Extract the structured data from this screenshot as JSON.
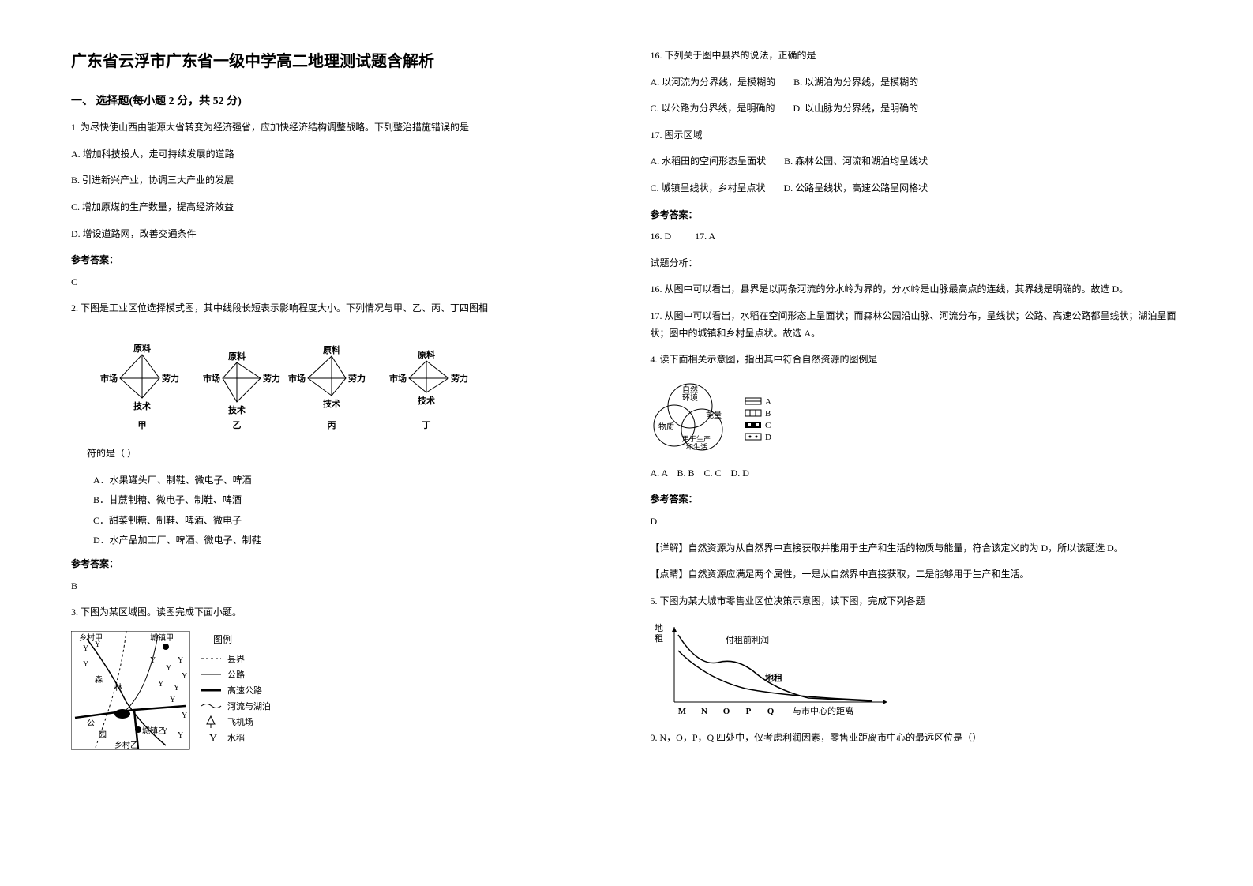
{
  "title": "广东省云浮市广东省一级中学高二地理测试题含解析",
  "section1_heading": "一、 选择题(每小题 2 分，共 52 分)",
  "q1": {
    "stem": "1. 为尽快使山西由能源大省转变为经济强省，应加快经济结构调整战略。下列整治措施错误的是",
    "optA": "A. 增加科技投人，走可持续发展的道路",
    "optB": "B. 引进新兴产业，协调三大产业的发展",
    "optC": "C. 增加原煤的生产数量，提高经济效益",
    "optD": "D. 增设道路网，改善交通条件",
    "answer_label": "参考答案：",
    "answer": "C"
  },
  "q2": {
    "stem": "2. 下图是工业区位选择模式图，其中线段长短表示影响程度大小。下列情况与甲、乙、丙、丁四图相",
    "fig": {
      "labels": {
        "top": "原料",
        "left": "市场",
        "right": "劳力",
        "bottom": "技术"
      },
      "diamonds": [
        "甲",
        "乙",
        "丙",
        "丁"
      ],
      "stroke": "#000000",
      "text_color": "#000000"
    },
    "tail": "符的是（    ）",
    "optA": "A．水果罐头厂、制鞋、微电子、啤酒",
    "optB": "B．甘蔗制糖、微电子、制鞋、啤酒",
    "optC": "C．甜菜制糖、制鞋、啤酒、微电子",
    "optD": "D．水产品加工厂、啤酒、微电子、制鞋",
    "answer_label": "参考答案：",
    "answer": "B"
  },
  "q3": {
    "stem": "3. 下图为某区域图。读图完成下面小题。",
    "legend_title": "图例",
    "legend": {
      "county": "县界",
      "road": "公路",
      "highway": "高速公路",
      "river": "河流与湖泊",
      "airport": "飞机场",
      "rice": "水稻"
    },
    "map_labels": {
      "villageA": "乡村甲",
      "townA": "城镇甲",
      "forest": "森",
      "forest2": "林",
      "park": "公",
      "park2": "园",
      "townB": "城镇乙",
      "villageB": "乡村乙"
    },
    "colors": {
      "stroke": "#000000",
      "bg": "#ffffff"
    }
  },
  "q16": {
    "stem": "16.  下列关于图中县界的说法，正确的是",
    "optA": "A.  以河流为分界线，是模糊的",
    "optB": "B.  以湖泊为分界线，是模糊的",
    "optC": "C.  以公路为分界线，是明确的",
    "optD": "D.  以山脉为分界线，是明确的"
  },
  "q17": {
    "stem": "17.  图示区域",
    "optA": "A.  水稻田的空间形态呈面状",
    "optB": "B.  森林公园、河流和湖泊均呈线状",
    "optC": "C.  城镇呈线状，乡村呈点状",
    "optD": "D.  公路呈线状，高速公路呈网格状"
  },
  "ans_1617": {
    "label": "参考答案：",
    "line": "16. D          17. A",
    "sub": "试题分析：",
    "exp16": "16.  从图中可以看出，县界是以两条河流的分水岭为界的，分水岭是山脉最高点的连线，其界线是明确的。故选 D。",
    "exp17": "17.  从图中可以看出，水稻在空间形态上呈面状；而森林公园沿山脉、河流分布，呈线状；公路、高速公路都呈线状；湖泊呈面状；图中的城镇和乡村呈点状。故选 A。"
  },
  "q4": {
    "stem": "4. 读下面相关示意图，指出其中符合自然资源的图例是",
    "fig": {
      "circle1": "自然",
      "circle1b": "环境",
      "circle2": "物质",
      "mid": "能量",
      "bottom": "用于生产",
      "bottom2": "和生活",
      "legend": {
        "A": "A",
        "B": "B",
        "C": "C",
        "D": "D"
      },
      "colors": {
        "stroke": "#000000"
      }
    },
    "opts": "A. A    B. B    C. C    D. D",
    "answer_label": "参考答案：",
    "answer": "D",
    "detail": "【详解】自然资源为从自然界中直接获取并能用于生产和生活的物质与能量，符合该定义的为 D，所以该题选 D。",
    "tip": "【点睛】自然资源应满足两个属性，一是从自然界中直接获取，二是能够用于生产和生活。"
  },
  "q5": {
    "stem": "5. 下图为某大城市零售业区位决策示意图，读下图，完成下列各题",
    "fig": {
      "ylabel": "地租",
      "ylabel2": "",
      "curve1": "付租前利润",
      "curve2": "地租",
      "xticks": [
        "M",
        "N",
        "O",
        "P",
        "Q"
      ],
      "xlabel": "与市中心的距离",
      "colors": {
        "stroke": "#000000",
        "bg": "#ffffff"
      }
    },
    "q9": "9.  N，O，P，Q 四处中，仅考虑利润因素，零售业距离市中心的最远区位是（）"
  }
}
